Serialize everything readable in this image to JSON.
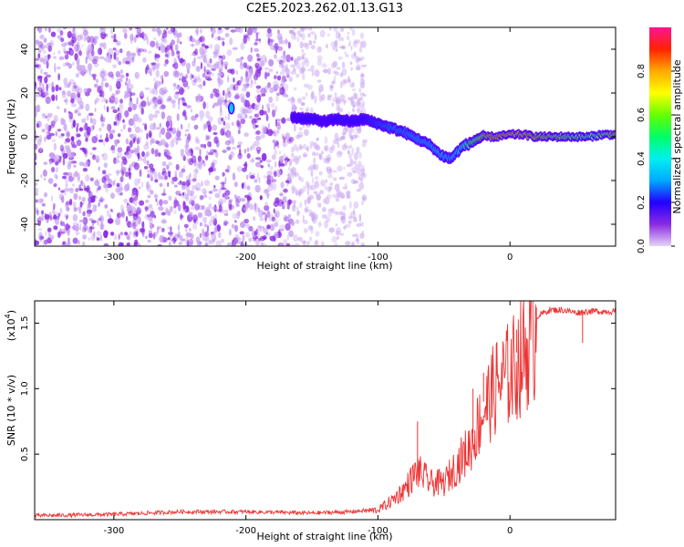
{
  "figure": {
    "title": "C2E5.2023.262.01.13.G13"
  },
  "chart_data": [
    {
      "type": "heatmap",
      "title": "C2E5.2023.262.01.13.G13",
      "xlabel": "Height of straight line (km)",
      "ylabel": "Frequency (Hz)",
      "xlim": [
        -360,
        80
      ],
      "ylim": [
        -50,
        50
      ],
      "x_ticks": [
        -300,
        -200,
        -100,
        0
      ],
      "y_ticks": [
        -40,
        -20,
        0,
        20,
        40
      ],
      "colorbar": {
        "label": "Normalized spectral amplitude",
        "range": [
          0.0,
          1.0
        ],
        "ticks": [
          "0.0",
          "0.2",
          "0.4",
          "0.6",
          "0.8"
        ],
        "colormap": [
          "#e6d4f7",
          "#8a2be2",
          "#2200ff",
          "#00aaff",
          "#00f0f0",
          "#00ff66",
          "#66ff00",
          "#ffff00",
          "#ffaa00",
          "#ff2200",
          "#ff1493"
        ]
      },
      "signal_track": {
        "x": [
          -165,
          -150,
          -140,
          -130,
          -120,
          -110,
          -100,
          -90,
          -80,
          -70,
          -60,
          -55,
          -50,
          -45,
          -40,
          -35,
          -30,
          -25,
          -20,
          -10,
          0,
          10,
          20,
          30,
          40,
          50,
          60,
          70,
          80
        ],
        "y": [
          9,
          8,
          7,
          8,
          7,
          8,
          6,
          4,
          2,
          -1,
          -4,
          -7,
          -9,
          -10,
          -7,
          -4,
          -3,
          -1,
          0,
          0,
          1,
          1,
          0,
          0,
          0,
          0,
          0,
          1,
          1
        ],
        "amplitude": [
          0.25,
          0.3,
          0.25,
          0.3,
          0.3,
          0.3,
          0.35,
          0.4,
          0.4,
          0.45,
          0.45,
          0.5,
          0.5,
          0.45,
          0.5,
          0.6,
          0.7,
          0.75,
          0.85,
          0.9,
          0.9,
          0.9,
          0.85,
          0.8,
          0.75,
          0.7,
          0.65,
          0.7,
          0.85
        ]
      },
      "isolated_feature": {
        "x": -211,
        "y": 13,
        "amplitude": 0.35
      },
      "noise_region": {
        "dense_x": [
          -360,
          -165
        ],
        "sparse_x": [
          -165,
          -110
        ],
        "max_amplitude": 0.1
      }
    },
    {
      "type": "line",
      "xlabel": "Height of straight line (km)",
      "ylabel": "SNR (10 * v/v)",
      "multiplier_label": "(x10",
      "multiplier_exp": "4",
      "xlim": [
        -360,
        80
      ],
      "ylim": [
        0.0,
        1.67
      ],
      "x_ticks": [
        -300,
        -200,
        -100,
        0
      ],
      "y_ticks": [
        0.5,
        1.0,
        1.5
      ],
      "y_tick_labels": [
        "0.5",
        "1.0",
        "1.5"
      ],
      "series": [
        {
          "color": "#ee3333",
          "envelope": {
            "x": [
              -360,
              -300,
              -250,
              -200,
              -150,
              -120,
              -100,
              -90,
              -80,
              -70,
              -60,
              -50,
              -40,
              -30,
              -20,
              -10,
              0,
              10,
              20,
              30,
              40,
              50,
              60,
              80
            ],
            "y": [
              0.03,
              0.04,
              0.06,
              0.06,
              0.05,
              0.06,
              0.08,
              0.15,
              0.25,
              0.4,
              0.3,
              0.3,
              0.45,
              0.6,
              0.9,
              1.1,
              1.2,
              1.35,
              1.55,
              1.6,
              1.6,
              1.58,
              1.59,
              1.59
            ]
          },
          "spikes": [
            {
              "x": -70,
              "y": 0.75
            },
            {
              "x": -28,
              "y": 1.0
            },
            {
              "x": -20,
              "y": 1.12
            },
            {
              "x": -10,
              "y": 1.35
            },
            {
              "x": 5,
              "y": 1.45
            },
            {
              "x": 20,
              "y": 1.62
            },
            {
              "x": 55,
              "y": 1.35
            }
          ]
        }
      ]
    }
  ]
}
